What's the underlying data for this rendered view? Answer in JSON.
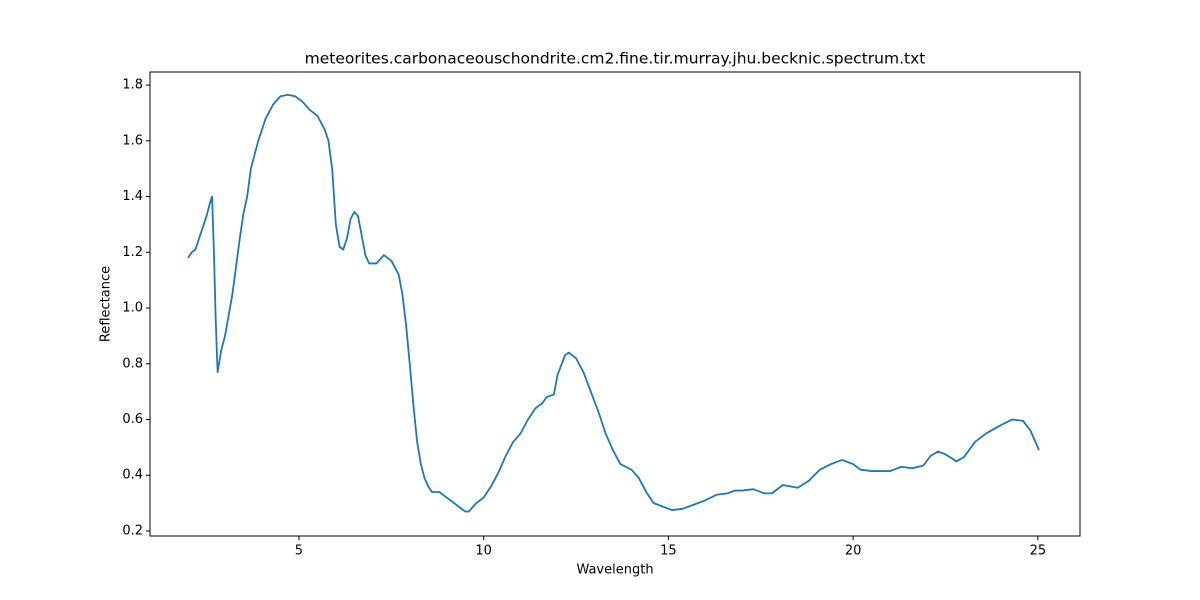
{
  "chart_data": {
    "type": "line",
    "title": "meteorites.carbonaceouschondrite.cm2.fine.tir.murray.jhu.becknic.spectrum.txt",
    "x_label": "Wavelength",
    "y_label": "Reflectance",
    "color": "#1f77b4",
    "xlim": [
      0.97,
      26.14
    ],
    "ylim": [
      0.182,
      1.847
    ],
    "xticks": [
      5,
      10,
      15,
      20,
      25
    ],
    "yticks": [
      0.2,
      0.4,
      0.6,
      0.8,
      {
        "value": 1,
        "label": "1.0"
      },
      1.2,
      1.4,
      1.6,
      1.8
    ],
    "grid": false,
    "x": [
      2.0,
      2.1,
      2.2,
      2.3,
      2.4,
      2.5,
      2.6,
      2.65,
      2.7,
      2.75,
      2.8,
      2.9,
      3.0,
      3.2,
      3.4,
      3.5,
      3.6,
      3.7,
      3.9,
      4.1,
      4.3,
      4.5,
      4.7,
      4.9,
      5.1,
      5.3,
      5.5,
      5.7,
      5.8,
      5.9,
      6.0,
      6.1,
      6.2,
      6.3,
      6.4,
      6.5,
      6.6,
      6.7,
      6.8,
      6.9,
      7.1,
      7.3,
      7.5,
      7.7,
      7.8,
      7.9,
      8.0,
      8.1,
      8.2,
      8.3,
      8.4,
      8.5,
      8.6,
      8.8,
      9.0,
      9.2,
      9.4,
      9.5,
      9.6,
      9.8,
      10.0,
      10.2,
      10.4,
      10.6,
      10.8,
      11.0,
      11.2,
      11.4,
      11.6,
      11.7,
      11.9,
      12.0,
      12.2,
      12.3,
      12.5,
      12.7,
      12.9,
      13.1,
      13.3,
      13.5,
      13.7,
      14.0,
      14.2,
      14.4,
      14.6,
      14.8,
      15.1,
      15.4,
      15.7,
      16.0,
      16.3,
      16.6,
      16.8,
      17.0,
      17.3,
      17.6,
      17.8,
      18.1,
      18.5,
      18.8,
      19.1,
      19.4,
      19.7,
      20.0,
      20.2,
      20.5,
      21.0,
      21.3,
      21.6,
      21.9,
      22.1,
      22.3,
      22.5,
      22.8,
      23.0,
      23.3,
      23.6,
      24.0,
      24.3,
      24.6,
      24.8,
      25.03
    ],
    "values": [
      1.18,
      1.2,
      1.21,
      1.25,
      1.29,
      1.33,
      1.38,
      1.4,
      1.2,
      0.95,
      0.77,
      0.85,
      0.9,
      1.05,
      1.25,
      1.34,
      1.4,
      1.5,
      1.6,
      1.68,
      1.73,
      1.76,
      1.765,
      1.76,
      1.74,
      1.71,
      1.69,
      1.64,
      1.6,
      1.5,
      1.3,
      1.22,
      1.21,
      1.25,
      1.32,
      1.345,
      1.33,
      1.26,
      1.19,
      1.16,
      1.16,
      1.19,
      1.17,
      1.12,
      1.05,
      0.94,
      0.8,
      0.65,
      0.52,
      0.44,
      0.39,
      0.36,
      0.34,
      0.34,
      0.32,
      0.3,
      0.28,
      0.27,
      0.27,
      0.3,
      0.32,
      0.36,
      0.41,
      0.47,
      0.52,
      0.55,
      0.6,
      0.64,
      0.66,
      0.68,
      0.69,
      0.76,
      0.83,
      0.84,
      0.82,
      0.77,
      0.7,
      0.63,
      0.55,
      0.49,
      0.44,
      0.42,
      0.39,
      0.34,
      0.3,
      0.29,
      0.275,
      0.28,
      0.295,
      0.31,
      0.33,
      0.335,
      0.345,
      0.345,
      0.35,
      0.335,
      0.335,
      0.365,
      0.355,
      0.38,
      0.42,
      0.44,
      0.455,
      0.44,
      0.42,
      0.415,
      0.415,
      0.43,
      0.425,
      0.435,
      0.47,
      0.485,
      0.475,
      0.45,
      0.465,
      0.52,
      0.55,
      0.58,
      0.6,
      0.595,
      0.56,
      0.49
    ]
  }
}
